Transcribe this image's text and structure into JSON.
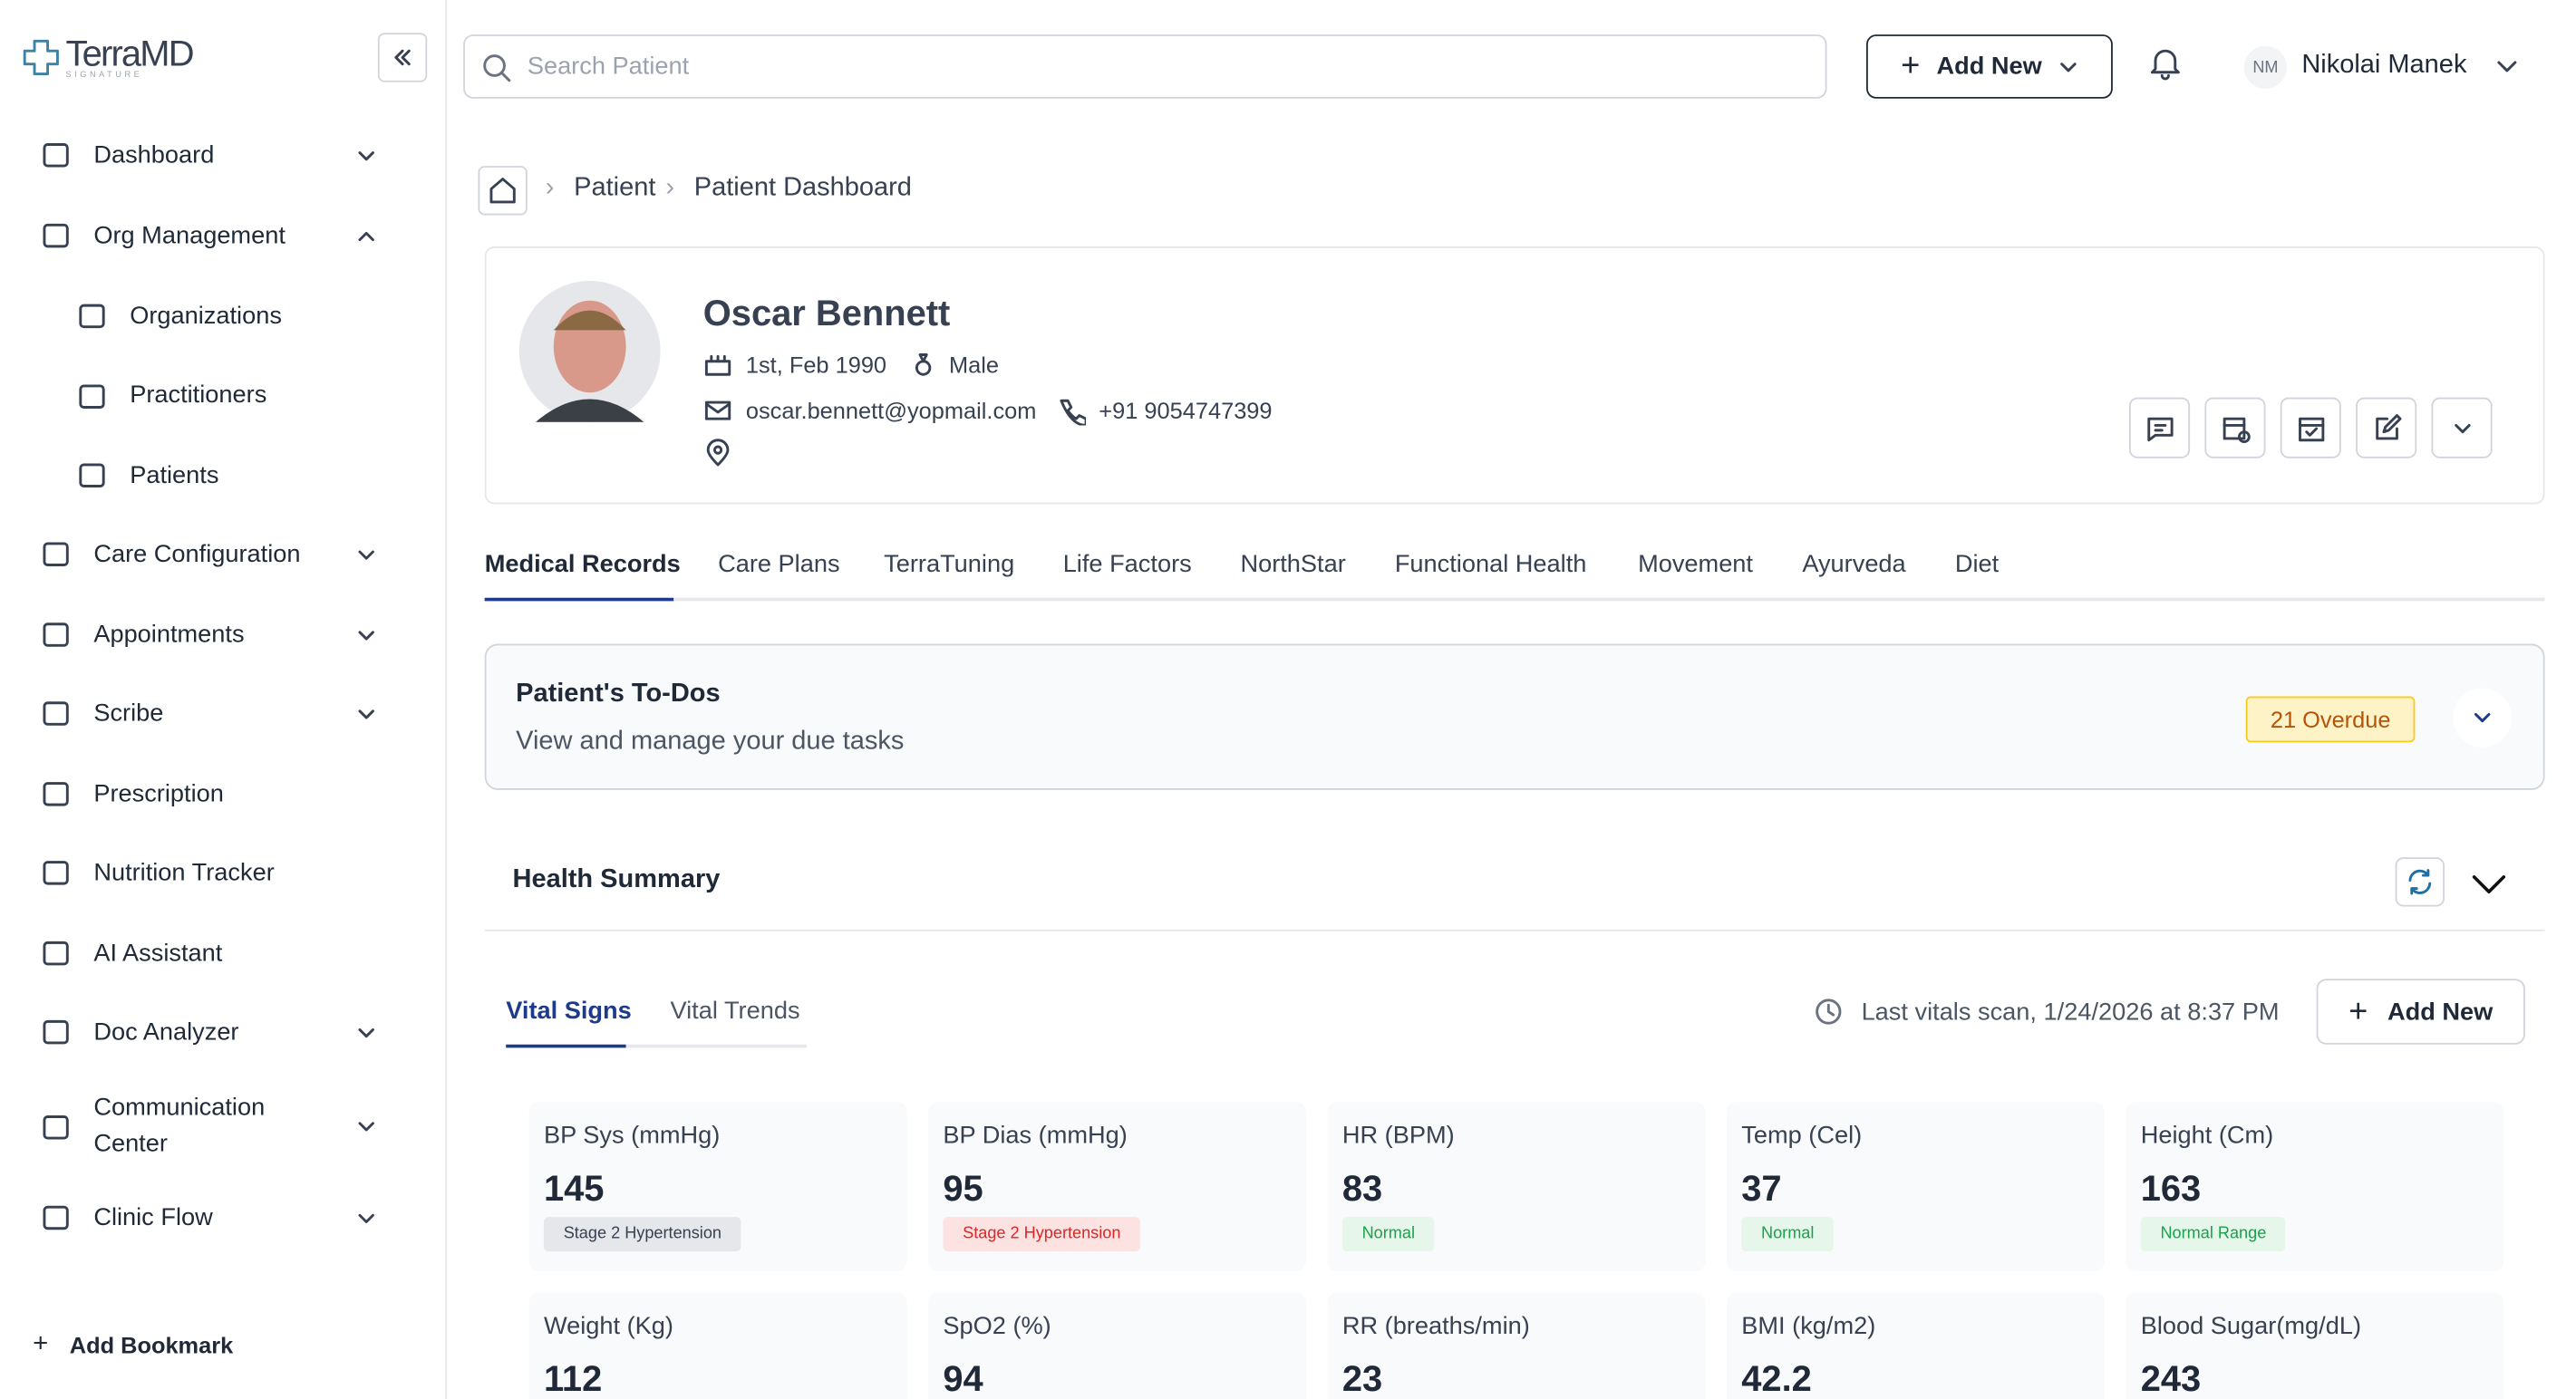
{
  "brand": {
    "logo": "TerraMD",
    "tagline": "SIGNATURE"
  },
  "sidebar": {
    "items": [
      {
        "label": "Dashboard",
        "expandable": true
      },
      {
        "label": "Org Management",
        "expandable": true,
        "open": true,
        "children": [
          "Organizations",
          "Practitioners",
          "Patients"
        ]
      },
      {
        "label": "Care Configuration",
        "expandable": true
      },
      {
        "label": "Appointments",
        "expandable": true
      },
      {
        "label": "Scribe",
        "expandable": true
      },
      {
        "label": "Prescription",
        "expandable": false
      },
      {
        "label": "Nutrition Tracker",
        "expandable": false
      },
      {
        "label": "AI Assistant",
        "expandable": false
      },
      {
        "label": "Doc Analyzer",
        "expandable": true
      },
      {
        "label": "Communication Center",
        "expandable": true
      },
      {
        "label": "Clinic Flow",
        "expandable": true
      }
    ],
    "add_bookmark": "Add Bookmark"
  },
  "topbar": {
    "search_placeholder": "Search Patient",
    "add_new": "Add New",
    "user_initials": "NM",
    "user_name": "Nikolai Manek"
  },
  "breadcrumb": [
    "Patient",
    "Patient Dashboard"
  ],
  "patient": {
    "name": "Oscar Bennett",
    "dob": "1st, Feb 1990",
    "gender": "Male",
    "email": "oscar.bennett@yopmail.com",
    "phone": "+91 9054747399"
  },
  "tabs": [
    "Medical Records",
    "Care Plans",
    "TerraTuning",
    "Life Factors",
    "NorthStar",
    "Functional Health",
    "Movement",
    "Ayurveda",
    "Diet"
  ],
  "todos": {
    "title": "Patient's To-Dos",
    "subtitle": "View and manage your due tasks",
    "badge": "21 Overdue"
  },
  "health_summary": {
    "title": "Health Summary",
    "subtabs": [
      "Vital Signs",
      "Vital Trends"
    ],
    "last_scan": "Last vitals scan, 1/24/2026 at 8:37 PM",
    "add_new": "Add New"
  },
  "vitals": [
    {
      "label": "BP Sys (mmHg)",
      "value": 145,
      "status": "Stage 2 Hypertension"
    },
    {
      "label": "BP Dias (mmHg)",
      "value": 95,
      "status": "Stage 2 Hypertension"
    },
    {
      "label": "HR (BPM)",
      "value": 83,
      "status": "Normal"
    },
    {
      "label": "Temp (Cel)",
      "value": 37,
      "status": "Normal"
    },
    {
      "label": "Height (Cm)",
      "value": 163,
      "status": "Normal Range"
    },
    {
      "label": "Weight (Kg)",
      "value": 112
    },
    {
      "label": "SpO2 (%)",
      "value": 94
    },
    {
      "label": "RR (breaths/min)",
      "value": 23
    },
    {
      "label": "BMI (kg/m2)",
      "value": 42.2
    },
    {
      "label": "Blood Sugar(mg/dL)",
      "value": 243
    }
  ]
}
